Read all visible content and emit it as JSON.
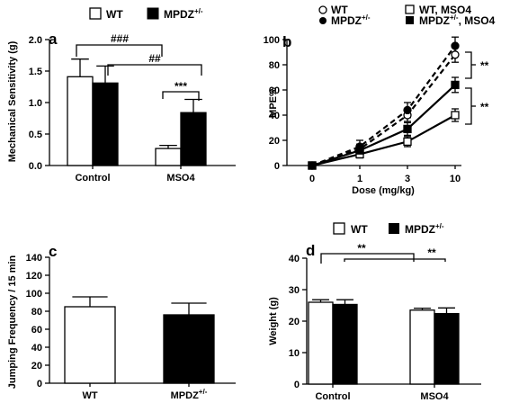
{
  "chart_data": [
    {
      "panel": "a",
      "type": "bar",
      "categories": [
        "Control",
        "MSO4"
      ],
      "series": [
        {
          "name": "WT",
          "values": [
            1.41,
            0.27
          ],
          "errors": [
            0.28,
            0.05
          ]
        },
        {
          "name": "MPDZ+/-",
          "values": [
            1.31,
            0.84
          ],
          "errors": [
            0.27,
            0.21
          ]
        }
      ],
      "ylabel": "Mechanical Sensitivity (g)",
      "xlabel": "",
      "ylim": [
        0.0,
        2.0
      ],
      "yticks": [
        "0.0",
        "0.5",
        "1.0",
        "1.5",
        "2.0"
      ],
      "annotations": [
        "###",
        "##",
        "***"
      ],
      "legend": [
        "WT",
        "MPDZ",
        "+/-"
      ],
      "legend_placement": "top"
    },
    {
      "panel": "b",
      "type": "line",
      "x": [
        0,
        1,
        3,
        10
      ],
      "xticks": [
        "0",
        "1",
        "3",
        "10"
      ],
      "series": [
        {
          "name": "WT",
          "values": [
            0,
            13,
            40,
            88
          ],
          "errors": [
            0,
            4,
            5,
            6
          ]
        },
        {
          "name": "MPDZ+/-",
          "values": [
            0,
            15,
            44,
            95
          ],
          "errors": [
            0,
            5,
            6,
            7
          ]
        },
        {
          "name": "WT, MSO4",
          "values": [
            0,
            9,
            19,
            40
          ],
          "errors": [
            0,
            3,
            4,
            5
          ]
        },
        {
          "name": "MPDZ+/-, MSO4",
          "values": [
            0,
            12,
            29,
            64
          ],
          "errors": [
            0,
            4,
            5,
            6
          ]
        }
      ],
      "xlabel": "Dose (mg/kg)",
      "ylabel": "MPE%",
      "ylim": [
        0,
        100
      ],
      "yticks": [
        "0",
        "20",
        "40",
        "60",
        "80",
        "100"
      ],
      "annotations": [
        "**",
        "**"
      ],
      "legend": [
        {
          "label": "WT"
        },
        {
          "label": "MPDZ",
          "sup": "+/-"
        },
        {
          "label": "WT, MSO4"
        },
        {
          "label": "MPDZ",
          "sup": "+/-",
          "suffix": ", MSO4"
        }
      ],
      "legend_placement": "top"
    },
    {
      "panel": "c",
      "type": "bar",
      "categories": [
        "WT",
        "MPDZ"
      ],
      "category_sup": [
        "",
        "+/-"
      ],
      "series": [
        {
          "name": "",
          "values": [
            85,
            76
          ],
          "errors": [
            11,
            13
          ]
        }
      ],
      "ylabel": "Jumping Frequency / 15 min",
      "xlabel": "",
      "ylim": [
        0,
        140
      ],
      "yticks": [
        "0",
        "20",
        "40",
        "60",
        "80",
        "100",
        "120",
        "140"
      ]
    },
    {
      "panel": "d",
      "type": "bar",
      "categories": [
        "Control",
        "MSO4"
      ],
      "series": [
        {
          "name": "WT",
          "values": [
            26.0,
            23.5
          ],
          "errors": [
            0.8,
            0.6
          ]
        },
        {
          "name": "MPDZ+/-",
          "values": [
            25.3,
            22.4
          ],
          "errors": [
            1.5,
            1.8
          ]
        }
      ],
      "ylabel": "Weight (g)",
      "xlabel": "",
      "ylim": [
        0,
        40
      ],
      "yticks": [
        "0",
        "10",
        "20",
        "30",
        "40"
      ],
      "annotations": [
        "**",
        "**"
      ],
      "legend": [
        "WT",
        "MPDZ",
        "+/-"
      ],
      "legend_placement": "top"
    }
  ],
  "colors": {
    "wt": "#ffffff",
    "mpdz": "#000000",
    "outline": "#000000"
  }
}
